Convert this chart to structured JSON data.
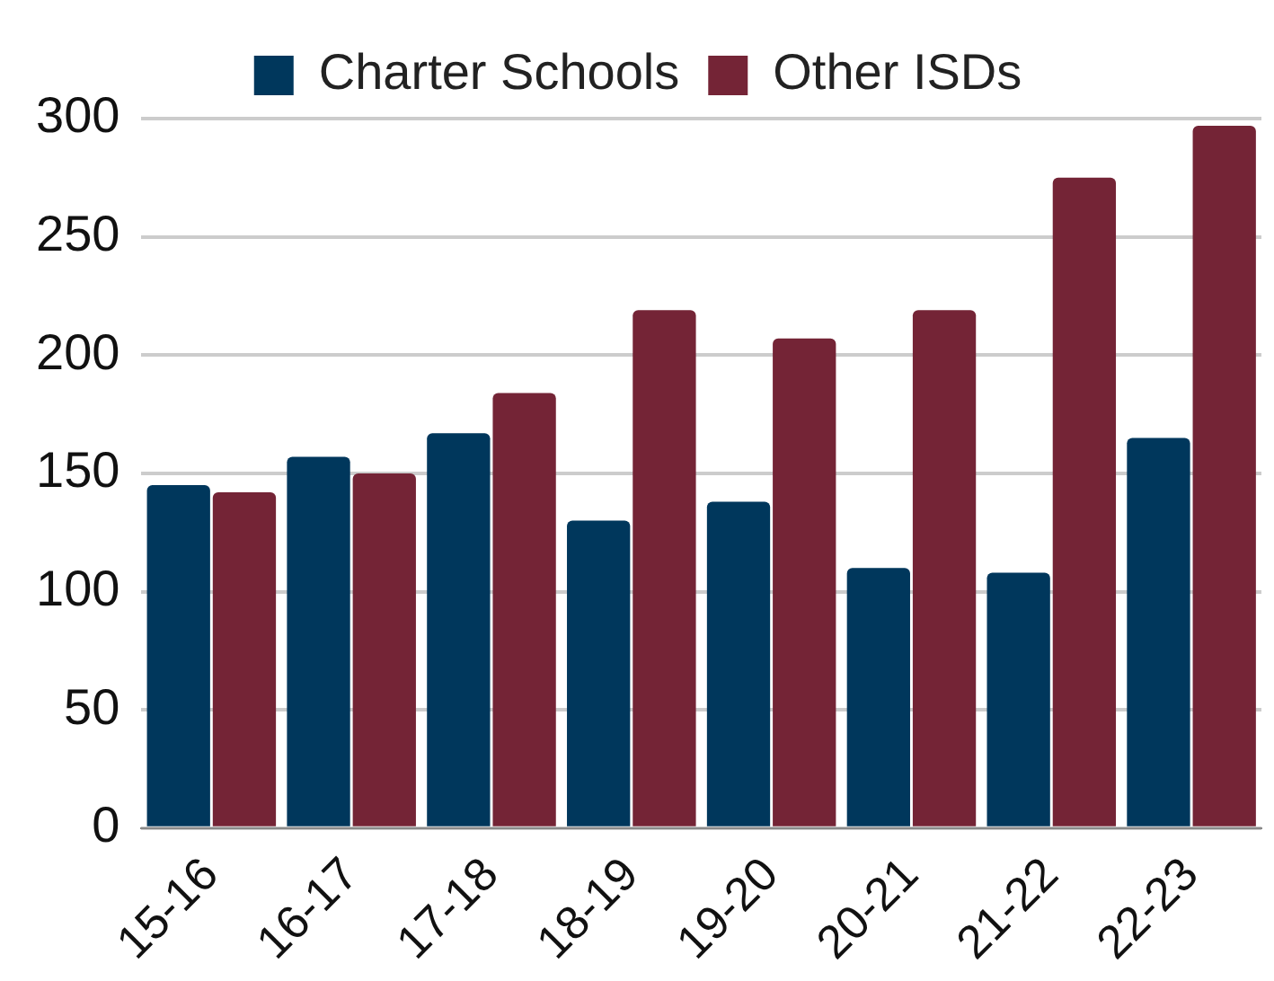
{
  "chart_data": {
    "type": "bar",
    "categories": [
      "15-16",
      "16-17",
      "17-18",
      "18-19",
      "19-20",
      "20-21",
      "21-22",
      "22-23"
    ],
    "series": [
      {
        "name": "Charter Schools",
        "color": "#00375c",
        "values": [
          145,
          157,
          167,
          130,
          138,
          110,
          108,
          165
        ]
      },
      {
        "name": "Other ISDs",
        "color": "#742436",
        "values": [
          142,
          150,
          184,
          219,
          207,
          219,
          275,
          297
        ]
      }
    ],
    "ylim": [
      0,
      300
    ],
    "yticks": [
      0,
      50,
      100,
      150,
      200,
      250,
      300
    ],
    "grid": "y",
    "legend": "top"
  }
}
